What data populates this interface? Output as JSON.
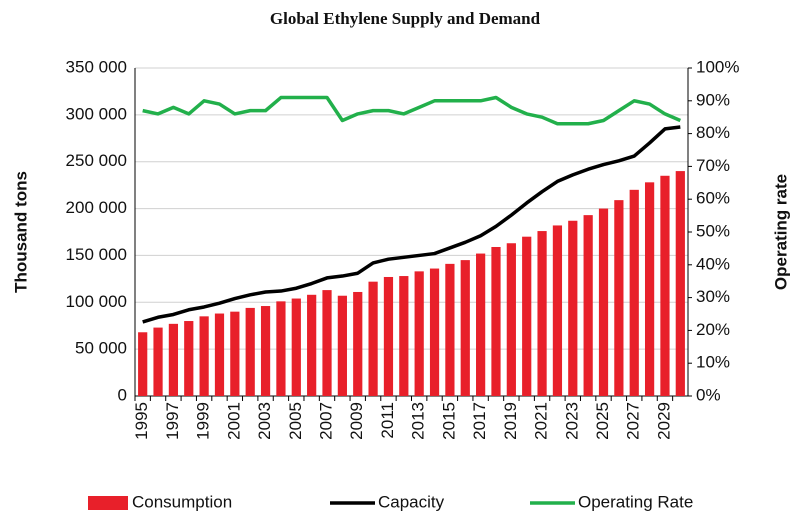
{
  "chart_data": {
    "type": "bar_line",
    "title": "Global Ethylene Supply and Demand",
    "ylabel": "Thousand tons",
    "y2label": "Operating rate",
    "categories": [
      "1995",
      null,
      "1997",
      null,
      "1999",
      null,
      "2001",
      null,
      "2003",
      null,
      "2005",
      null,
      "2007",
      null,
      "2009",
      null,
      "2011",
      null,
      "2013",
      null,
      "2015",
      null,
      "2017",
      null,
      "2019",
      null,
      "2021",
      null,
      "2023",
      null,
      "2025",
      null,
      "2027",
      null,
      "2029",
      null
    ],
    "series": [
      {
        "name": "Consumption",
        "kind": "bar",
        "color": "#e8202a",
        "values": [
          68000,
          73000,
          77000,
          80000,
          85000,
          88000,
          90000,
          94000,
          96000,
          101000,
          104000,
          108000,
          113000,
          107000,
          111000,
          122000,
          127000,
          128000,
          133000,
          136000,
          141000,
          145000,
          152000,
          159000,
          163000,
          170000,
          176000,
          182000,
          187000,
          193000,
          200000,
          209000,
          220000,
          228000,
          235000,
          240000
        ]
      },
      {
        "name": "Capacity",
        "kind": "line",
        "color": "#000000",
        "values": [
          79000,
          84000,
          87000,
          92000,
          95000,
          99000,
          104000,
          108000,
          111000,
          112000,
          115000,
          120000,
          126000,
          128000,
          131000,
          142000,
          146000,
          148000,
          150000,
          152000,
          158000,
          164000,
          171000,
          181000,
          193000,
          206000,
          218000,
          229000,
          236000,
          242000,
          247000,
          251000,
          256000,
          270000,
          285000,
          287000
        ]
      },
      {
        "name": "Operating Rate",
        "kind": "line",
        "axis": "y2",
        "color": "#22b04b",
        "values": [
          87,
          86,
          88,
          86,
          90,
          89,
          86,
          87,
          87,
          91,
          91,
          91,
          91,
          84,
          86,
          87,
          87,
          86,
          88,
          90,
          90,
          90,
          90,
          91,
          88,
          86,
          85,
          83,
          83,
          83,
          84,
          87,
          90,
          89,
          86,
          84
        ]
      }
    ],
    "ylim": [
      0,
      350000
    ],
    "yticks": [
      0,
      {
        "value": 50000,
        "label": "50 000"
      },
      {
        "value": 100000,
        "label": "100 000"
      },
      {
        "value": 150000,
        "label": "150 000"
      },
      {
        "value": 200000,
        "label": "200 000"
      },
      {
        "value": 250000,
        "label": "250 000"
      },
      {
        "value": 300000,
        "label": "300 000"
      },
      {
        "value": 350000,
        "label": "350 000"
      }
    ],
    "y2lim": [
      0,
      100
    ],
    "y2ticks": [
      {
        "value": 0,
        "label": "0%"
      },
      {
        "value": 10,
        "label": "10%"
      },
      {
        "value": 20,
        "label": "20%"
      },
      {
        "value": 30,
        "label": "30%"
      },
      {
        "value": 40,
        "label": "40%"
      },
      {
        "value": 50,
        "label": "50%"
      },
      {
        "value": 60,
        "label": "60%"
      },
      {
        "value": 70,
        "label": "70%"
      },
      {
        "value": 80,
        "label": "80%"
      },
      {
        "value": 90,
        "label": "90%"
      },
      {
        "value": 100,
        "label": "100%"
      }
    ],
    "legend": "bottom"
  }
}
